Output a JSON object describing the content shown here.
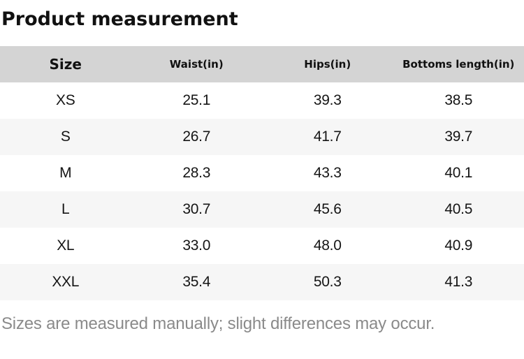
{
  "page": {
    "title": "Product measurement",
    "footnote": "Sizes are measured manually; slight differences may occur."
  },
  "colors": {
    "header_row_bg": "#d4d4d4",
    "stripe_row_bg": "#f6f6f6",
    "body_text": "#151515",
    "footnote_text": "#8a8a8a"
  },
  "table": {
    "headers": [
      "Size",
      "Waist(in)",
      "Hips(in)",
      "Bottoms length(in)"
    ],
    "rows": [
      {
        "cells": [
          "XS",
          "25.1",
          "39.3",
          "38.5"
        ]
      },
      {
        "cells": [
          "S",
          "26.7",
          "41.7",
          "39.7"
        ]
      },
      {
        "cells": [
          "M",
          "28.3",
          "43.3",
          "40.1"
        ]
      },
      {
        "cells": [
          "L",
          "30.7",
          "45.6",
          "40.5"
        ]
      },
      {
        "cells": [
          "XL",
          "33.0",
          "48.0",
          "40.9"
        ]
      },
      {
        "cells": [
          "XXL",
          "35.4",
          "50.3",
          "41.3"
        ]
      }
    ]
  }
}
